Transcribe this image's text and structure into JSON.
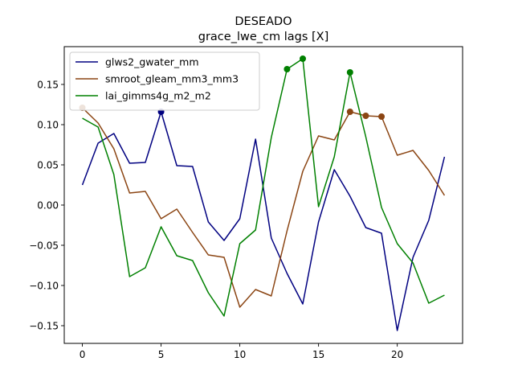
{
  "chart_data": {
    "type": "line",
    "title": "DESEADO",
    "subtitle": "grace_lwe_cm lags [X]",
    "xlabel": "",
    "ylabel": "",
    "xlim": [
      -1.15,
      24.15
    ],
    "ylim": [
      -0.172,
      0.197
    ],
    "xticks": [
      0,
      5,
      10,
      15,
      20
    ],
    "yticks": [
      -0.15,
      -0.1,
      -0.05,
      0.0,
      0.05,
      0.1,
      0.15
    ],
    "ytick_labels": [
      "−0.15",
      "−0.10",
      "−0.05",
      "0.00",
      "0.05",
      "0.10",
      "0.15"
    ],
    "grid": false,
    "legend_position": "upper-left",
    "x": [
      0,
      1,
      2,
      3,
      4,
      5,
      6,
      7,
      8,
      9,
      10,
      11,
      12,
      13,
      14,
      15,
      16,
      17,
      18,
      19,
      20,
      21,
      22,
      23
    ],
    "series": [
      {
        "name": "glws2_gwater_mm",
        "color": "#000080",
        "values": [
          0.025,
          0.077,
          0.089,
          0.052,
          0.053,
          0.116,
          0.049,
          0.048,
          -0.021,
          -0.044,
          -0.017,
          0.082,
          -0.041,
          -0.085,
          -0.123,
          -0.021,
          0.044,
          0.011,
          -0.028,
          -0.035,
          -0.156,
          -0.065,
          -0.019,
          0.06
        ],
        "markers": [
          5
        ]
      },
      {
        "name": "smroot_gleam_mm3_mm3",
        "color": "#8b4513",
        "values": [
          0.121,
          0.102,
          0.07,
          0.015,
          0.017,
          -0.017,
          -0.005,
          -0.034,
          -0.062,
          -0.065,
          -0.127,
          -0.105,
          -0.113,
          -0.032,
          0.042,
          0.086,
          0.081,
          0.116,
          0.111,
          0.11,
          0.062,
          0.068,
          0.043,
          0.012
        ],
        "markers": [
          0,
          17,
          18,
          19
        ]
      },
      {
        "name": "lai_gimms4g_m2_m2",
        "color": "#008000",
        "values": [
          0.108,
          0.097,
          0.038,
          -0.089,
          -0.078,
          -0.027,
          -0.063,
          -0.069,
          -0.109,
          -0.138,
          -0.048,
          -0.031,
          0.084,
          0.169,
          0.182,
          -0.002,
          0.06,
          0.165,
          0.085,
          -0.003,
          -0.048,
          -0.072,
          -0.122,
          -0.112
        ],
        "markers": [
          13,
          14,
          17
        ]
      }
    ]
  }
}
